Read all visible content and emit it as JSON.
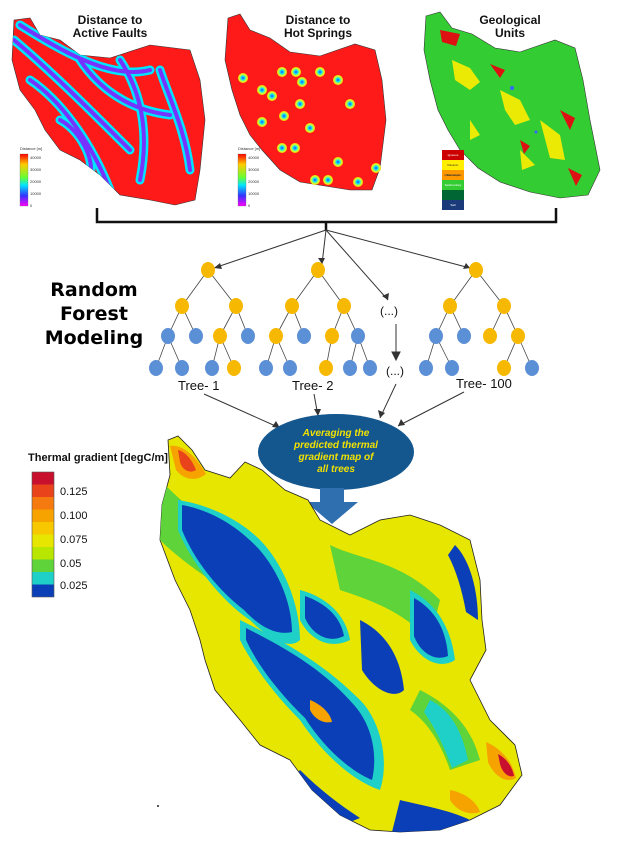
{
  "inputs": {
    "faults_title_1": "Distance to",
    "faults_title_2": "Active Faults",
    "springs_title_1": "Distance to",
    "springs_title_2": "Hot Springs",
    "geology_title_1": "Geological",
    "geology_title_2": "Units",
    "distance_legend": {
      "title": "Distance [m]",
      "ticks": [
        "40000",
        "30000",
        "20000",
        "10000",
        "0"
      ]
    },
    "geology_legend": [
      "Igneous",
      "Volcanic, Extrusive",
      "Metamorphic",
      "Sedimentary",
      "Salt"
    ]
  },
  "model": {
    "title_1": "Random Forest",
    "title_2": "Modeling",
    "tree_labels": [
      "Tree- 1",
      "Tree- 2",
      "Tree- 100"
    ],
    "ellipsis": "(...)",
    "averaging_text_1": "Averaging the",
    "averaging_text_2": "predicted thermal",
    "averaging_text_3": "gradient map of",
    "averaging_text_4": "all trees"
  },
  "output": {
    "legend_title": "Thermal gradient [degC/m]",
    "legend_ticks": [
      "0.125",
      "0.100",
      "0.075",
      "0.05",
      "0.025"
    ],
    "colors": [
      "#c8102e",
      "#e8431a",
      "#f57a10",
      "#f6a300",
      "#f7c800",
      "#e6e600",
      "#b8e600",
      "#5ed33a",
      "#1fd0c8",
      "#0b3fb8"
    ]
  },
  "palette": {
    "node_orange": "#f6b800",
    "node_blue": "#5b8fd6",
    "oval_blue": "#14568e",
    "map_red": "#ff1a1a",
    "map_green": "#33cc33"
  }
}
